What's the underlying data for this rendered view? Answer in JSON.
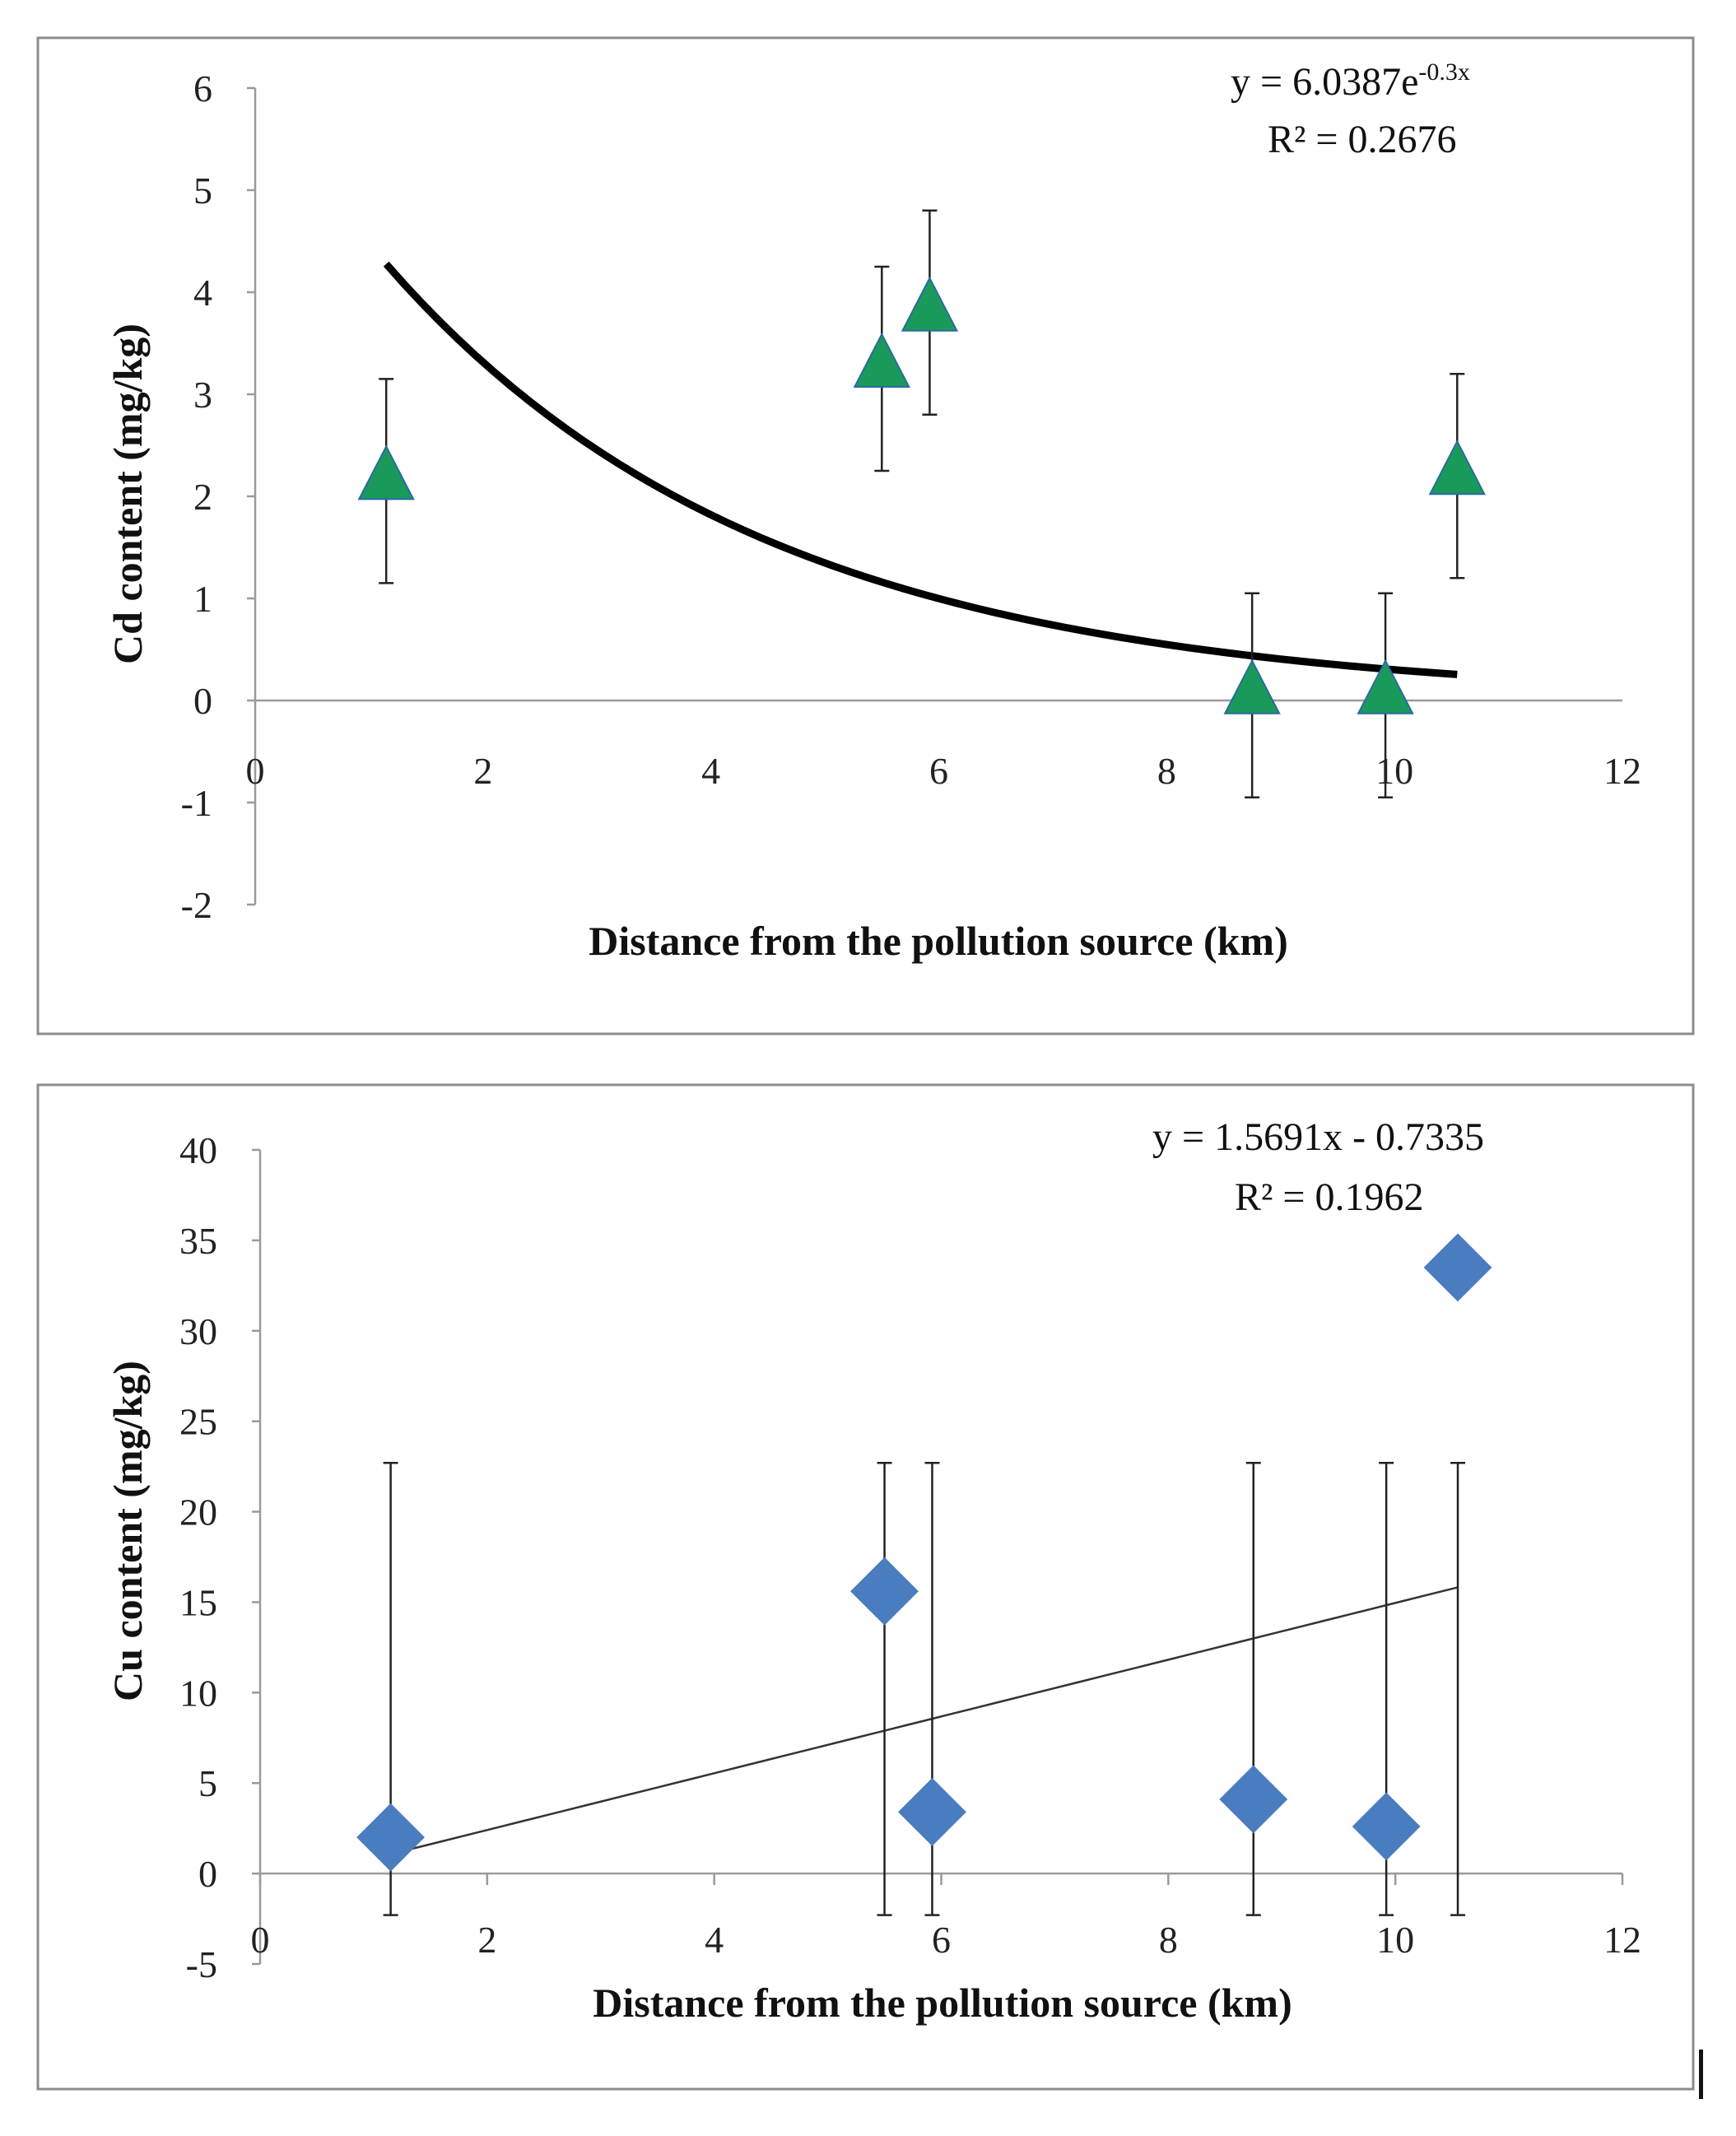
{
  "chart_data": [
    {
      "type": "scatter",
      "title": "",
      "xlabel": "Distance from the pollution source (km)",
      "ylabel": "Cd content (mg/kg)",
      "xlim": [
        0,
        12
      ],
      "ylim": [
        -2,
        6
      ],
      "xticks": [
        "0",
        "2",
        "4",
        "6",
        "8",
        "10",
        "12"
      ],
      "yticks": [
        "-2",
        "-1",
        "0",
        "1",
        "2",
        "3",
        "4",
        "5",
        "6"
      ],
      "marker": "triangle",
      "marker_color": "#1a9a5a",
      "marker_edge": "#2a6aa0",
      "series": [
        {
          "name": "Cd",
          "x": [
            1.15,
            5.5,
            5.92,
            8.75,
            9.92,
            10.55
          ],
          "y": [
            2.15,
            3.25,
            3.8,
            0.05,
            0.05,
            2.2
          ],
          "err_low": [
            1.15,
            2.25,
            2.8,
            -0.95,
            -0.95,
            1.2
          ],
          "err_high": [
            3.15,
            4.25,
            4.8,
            1.05,
            1.05,
            3.2
          ]
        }
      ],
      "trendline": {
        "type": "exponential",
        "a": 6.0387,
        "b": -0.3,
        "x_range": [
          1.15,
          10.55
        ],
        "color": "#000000"
      },
      "equation": "y = 6.0387e",
      "equation_exp": "-0.3x",
      "r2": "R² = 0.2676",
      "grid": false
    },
    {
      "type": "scatter",
      "title": "",
      "xlabel": "Distance from the pollution source (km)",
      "ylabel": "Cu content (mg/kg)",
      "xlim": [
        0,
        12
      ],
      "ylim": [
        -5,
        40
      ],
      "xticks": [
        "0",
        "2",
        "4",
        "6",
        "8",
        "10",
        "12"
      ],
      "yticks": [
        "-5",
        "0",
        "5",
        "10",
        "15",
        "20",
        "25",
        "30",
        "35",
        "40"
      ],
      "marker": "diamond",
      "marker_color": "#4a7cc0",
      "marker_edge": "#4a7cc0",
      "series": [
        {
          "name": "Cu",
          "x": [
            1.15,
            5.5,
            5.92,
            8.75,
            9.92,
            10.55
          ],
          "y": [
            2.0,
            15.6,
            3.4,
            4.1,
            2.6,
            33.5
          ],
          "err_low": [
            -2.3,
            -2.3,
            -2.3,
            -2.3,
            -2.3,
            -2.3
          ],
          "err_high": [
            22.7,
            22.7,
            22.7,
            22.7,
            22.7,
            22.7
          ]
        }
      ],
      "trendline": {
        "type": "linear",
        "a": 1.5691,
        "b": -0.7335,
        "x_range": [
          1.15,
          10.55
        ],
        "color": "#333333"
      },
      "equation": "y = 1.5691x - 0.7335",
      "equation_exp": "",
      "r2": "R² = 0.1962",
      "grid": false
    }
  ]
}
